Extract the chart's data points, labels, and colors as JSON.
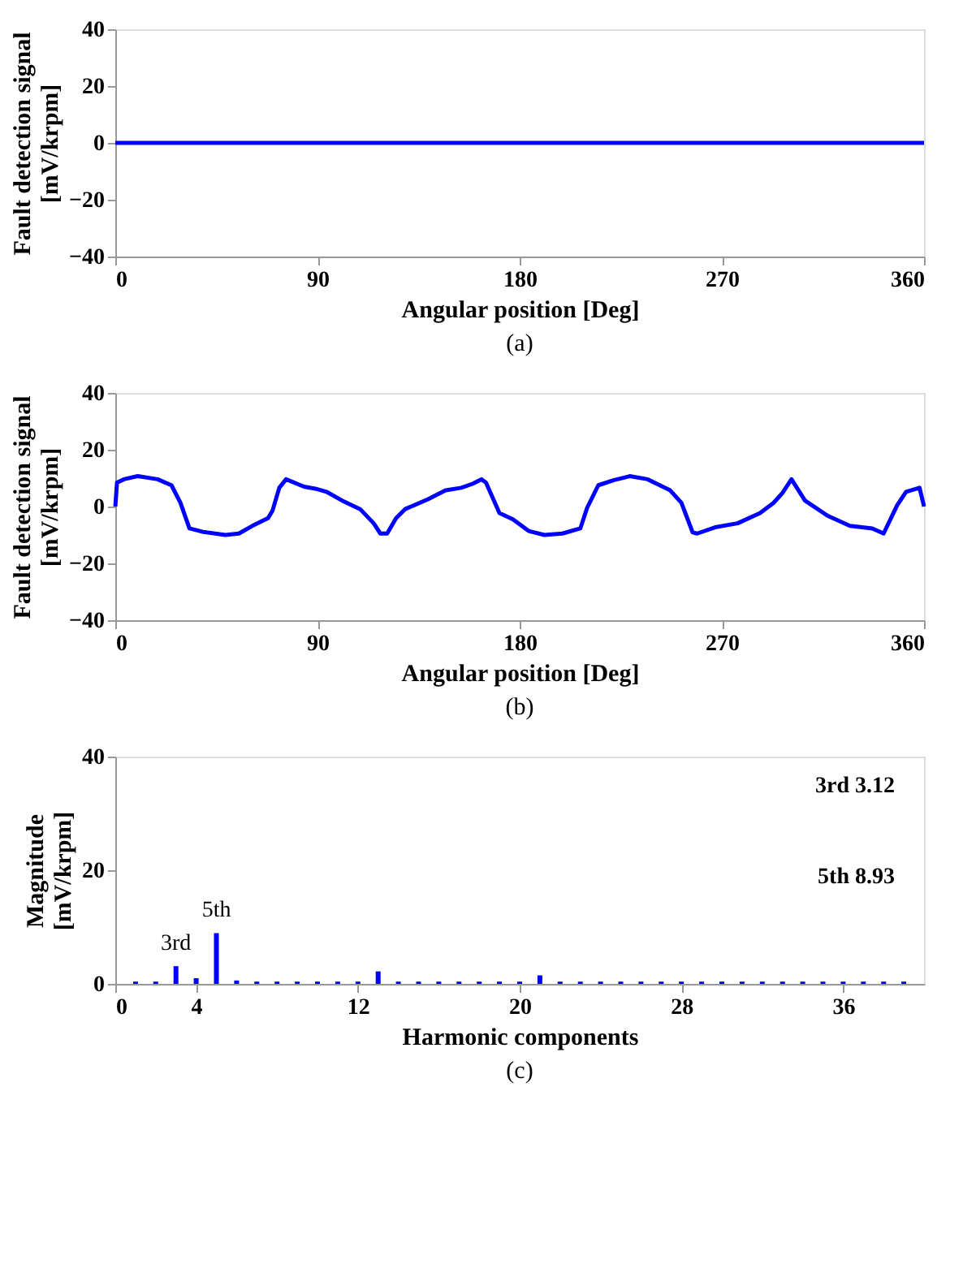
{
  "chart_data": [
    {
      "type": "line",
      "title": "(a)",
      "xlabel": "Angular position [Deg]",
      "ylabel": "Fault detection signal\n[mV/krpm]",
      "x": [
        0,
        90,
        180,
        270,
        360
      ],
      "series": [
        {
          "color": "#0000ff",
          "values": [
            0,
            0,
            0,
            0,
            0
          ]
        }
      ],
      "xlim": [
        0,
        360
      ],
      "xticks": [
        0,
        90,
        180,
        270,
        360
      ],
      "ylim": [
        -40,
        40
      ],
      "yticks": [
        -40,
        -20,
        0,
        20,
        40
      ],
      "grid": false,
      "marker": "none",
      "line_style": "solid"
    },
    {
      "type": "line",
      "title": "(b)",
      "xlabel": "Angular position [Deg]",
      "ylabel": "Fault detection signal\n[mV/krpm]",
      "x": [
        0,
        0.75,
        3.8,
        10,
        18.8,
        25,
        29,
        33,
        39,
        49,
        55,
        61,
        68,
        70,
        73,
        76,
        84,
        89,
        94,
        101,
        109,
        115,
        118,
        121,
        125,
        129,
        139,
        147,
        154,
        159,
        163,
        165,
        171,
        177,
        184,
        191,
        199,
        207,
        210,
        215,
        222,
        229,
        237,
        247,
        252,
        257,
        259,
        267,
        277,
        287,
        293,
        297,
        301,
        307,
        317,
        327,
        337,
        342,
        348,
        352,
        358,
        360
      ],
      "series": [
        {
          "color": "#0000ff",
          "values": [
            0,
            8.4,
            9.6,
            10.7,
            9.6,
            7.5,
            1.3,
            -7.7,
            -8.9,
            -10,
            -9.5,
            -6.8,
            -4.1,
            -1.4,
            6.6,
            9.6,
            7,
            6.3,
            5.2,
            2.1,
            -0.9,
            -5.9,
            -9.5,
            -9.5,
            -4.1,
            -0.9,
            2.5,
            5.7,
            6.6,
            8,
            9.6,
            8.4,
            -2.3,
            -4.5,
            -8.6,
            -10,
            -9.5,
            -7.7,
            -0.5,
            7.5,
            9.3,
            10.7,
            9.6,
            5.7,
            1.3,
            -9.1,
            -9.5,
            -7.3,
            -5.9,
            -2.3,
            1.3,
            4.8,
            9.6,
            2.1,
            -3.2,
            -6.8,
            -7.7,
            -9.5,
            0.4,
            5.2,
            6.6,
            0
          ]
        }
      ],
      "xlim": [
        0,
        360
      ],
      "xticks": [
        0,
        90,
        180,
        270,
        360
      ],
      "ylim": [
        -40,
        40
      ],
      "yticks": [
        -40,
        -20,
        0,
        20,
        40
      ],
      "grid": false,
      "marker": "none",
      "line_style": "solid"
    },
    {
      "type": "bar",
      "title": "(c)",
      "xlabel": "Harmonic components",
      "ylabel": "Magnitude\n[mV/krpm]",
      "x": [
        1,
        2,
        3,
        4,
        5,
        6,
        7,
        8,
        9,
        10,
        11,
        12,
        13,
        14,
        15,
        16,
        17,
        18,
        19,
        20,
        21,
        22,
        23,
        24,
        25,
        26,
        27,
        28,
        29,
        30,
        31,
        32,
        33,
        34,
        35,
        36,
        37,
        38,
        39
      ],
      "series": [
        {
          "color": "#0000ff",
          "values": [
            0.4,
            0.4,
            3.12,
            1,
            8.93,
            0.6,
            0.4,
            0.4,
            0.4,
            0.4,
            0.4,
            0.4,
            2.2,
            0.4,
            0.4,
            0.4,
            0.4,
            0.4,
            0.4,
            0.4,
            1.5,
            0.4,
            0.4,
            0.4,
            0.4,
            0.4,
            0.4,
            0.4,
            0.4,
            0.4,
            0.4,
            0.4,
            0.4,
            0.4,
            0.4,
            0.4,
            0.4,
            0.4,
            0.4
          ]
        }
      ],
      "xlim": [
        0,
        40
      ],
      "xticks": [
        0,
        4,
        12,
        20,
        28,
        36
      ],
      "ylim": [
        0,
        40
      ],
      "yticks": [
        0,
        20,
        40
      ],
      "grid": false,
      "annotations": [
        {
          "text": "3rd",
          "x": 3,
          "y": 3.12
        },
        {
          "text": "5th",
          "x": 5,
          "y": 8.93
        },
        "3rd      3.12",
        "5th      8.93"
      ]
    }
  ]
}
